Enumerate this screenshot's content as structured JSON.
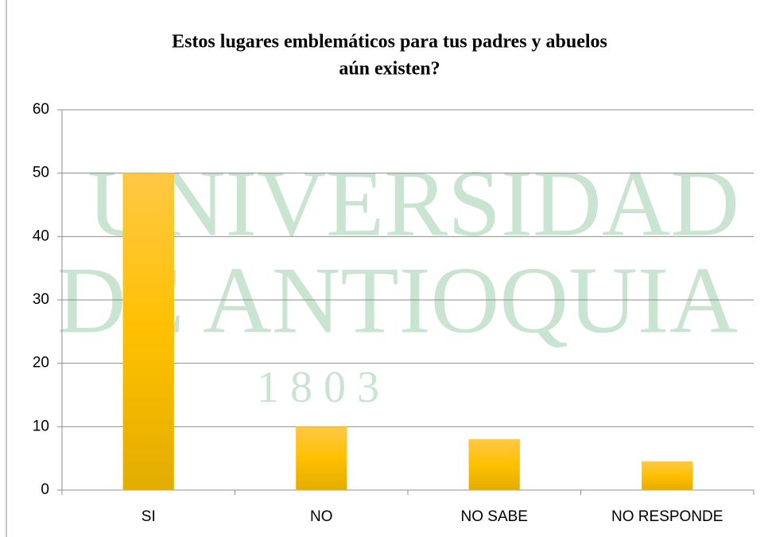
{
  "watermark": [
    "UNIVERSIDAD",
    "DE ANTIOQUIA",
    "1 8 0 3"
  ],
  "chart_data": {
    "type": "bar",
    "title": [
      "Estos lugares emblemáticos para tus padres y abuelos",
      "aún existen?"
    ],
    "categories": [
      "SI",
      "NO",
      "NO SABE",
      "NO RESPONDE"
    ],
    "values": [
      50,
      10,
      8,
      4.5
    ],
    "color": "#ffc000",
    "ylim": [
      0,
      60
    ],
    "yticks": [
      0,
      10,
      20,
      30,
      40,
      50,
      60
    ],
    "grid": true
  }
}
